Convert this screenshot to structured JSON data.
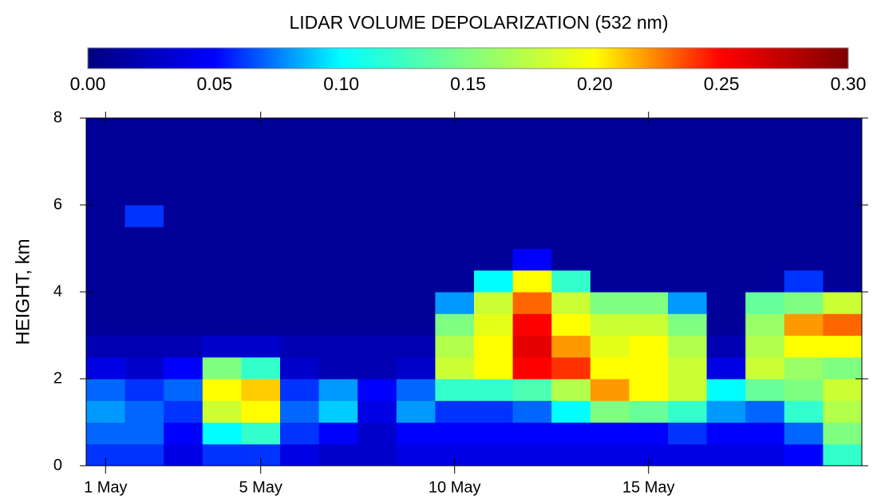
{
  "chart_data": {
    "type": "heatmap",
    "title": "LIDAR VOLUME DEPOLARIZATION (532 nm)",
    "ylabel": "HEIGHT, km",
    "x": [
      1,
      2,
      3,
      4,
      5,
      6,
      7,
      8,
      9,
      10,
      11,
      12,
      13,
      14,
      15,
      16,
      17,
      18,
      19,
      20
    ],
    "y": [
      0.25,
      0.75,
      1.25,
      1.75,
      2.25,
      2.75,
      3.25,
      3.75,
      4.25,
      4.75,
      5.25,
      5.75,
      6.25,
      6.75,
      7.25,
      7.75
    ],
    "z": [
      [
        0.06,
        0.06,
        0.04,
        0.06,
        0.06,
        0.04,
        0.03,
        0.03,
        0.04,
        0.04,
        0.04,
        0.04,
        0.04,
        0.04,
        0.04,
        0.04,
        0.04,
        0.04,
        0.05,
        0.12
      ],
      [
        0.07,
        0.07,
        0.05,
        0.1,
        0.12,
        0.06,
        0.05,
        0.03,
        0.05,
        0.05,
        0.05,
        0.05,
        0.05,
        0.05,
        0.05,
        0.06,
        0.05,
        0.05,
        0.07,
        0.15
      ],
      [
        0.08,
        0.07,
        0.06,
        0.18,
        0.2,
        0.07,
        0.09,
        0.04,
        0.08,
        0.06,
        0.06,
        0.07,
        0.1,
        0.15,
        0.14,
        0.12,
        0.08,
        0.07,
        0.12,
        0.17
      ],
      [
        0.07,
        0.06,
        0.07,
        0.2,
        0.21,
        0.06,
        0.08,
        0.05,
        0.07,
        0.12,
        0.12,
        0.13,
        0.17,
        0.22,
        0.2,
        0.18,
        0.1,
        0.14,
        0.15,
        0.18
      ],
      [
        0.04,
        0.03,
        0.05,
        0.15,
        0.12,
        0.03,
        0.02,
        0.02,
        0.03,
        0.18,
        0.2,
        0.25,
        0.24,
        0.2,
        0.2,
        0.18,
        0.04,
        0.18,
        0.16,
        0.15
      ],
      [
        0.02,
        0.02,
        0.02,
        0.03,
        0.03,
        0.02,
        0.02,
        0.02,
        0.02,
        0.17,
        0.2,
        0.26,
        0.22,
        0.19,
        0.2,
        0.17,
        0.02,
        0.17,
        0.2,
        0.2
      ],
      [
        0.01,
        0.01,
        0.01,
        0.01,
        0.01,
        0.01,
        0.01,
        0.01,
        0.01,
        0.15,
        0.19,
        0.25,
        0.2,
        0.18,
        0.18,
        0.15,
        0.01,
        0.16,
        0.22,
        0.23
      ],
      [
        0.01,
        0.01,
        0.01,
        0.01,
        0.01,
        0.01,
        0.01,
        0.01,
        0.01,
        0.08,
        0.18,
        0.23,
        0.18,
        0.15,
        0.15,
        0.08,
        0.01,
        0.14,
        0.15,
        0.18
      ],
      [
        0.01,
        0.01,
        0.01,
        0.01,
        0.01,
        0.01,
        0.01,
        0.01,
        0.01,
        0.01,
        0.1,
        0.2,
        0.12,
        0.01,
        0.01,
        0.01,
        0.01,
        0.01,
        0.06,
        0.01
      ],
      [
        0.01,
        0.01,
        0.01,
        0.01,
        0.01,
        0.01,
        0.01,
        0.01,
        0.01,
        0.01,
        0.01,
        0.05,
        0.01,
        0.01,
        0.01,
        0.01,
        0.01,
        0.01,
        0.01,
        0.01
      ],
      [
        0.01,
        0.01,
        0.01,
        0.01,
        0.01,
        0.01,
        0.01,
        0.01,
        0.01,
        0.01,
        0.01,
        0.01,
        0.01,
        0.01,
        0.01,
        0.01,
        0.01,
        0.01,
        0.01,
        0.01
      ],
      [
        0.01,
        0.06,
        0.01,
        0.01,
        0.01,
        0.01,
        0.01,
        0.01,
        0.01,
        0.01,
        0.01,
        0.01,
        0.01,
        0.01,
        0.01,
        0.01,
        0.01,
        0.01,
        0.01,
        0.01
      ],
      [
        0.01,
        0.01,
        0.01,
        0.01,
        0.01,
        0.01,
        0.01,
        0.01,
        0.01,
        0.01,
        0.01,
        0.01,
        0.01,
        0.01,
        0.01,
        0.01,
        0.01,
        0.01,
        0.01,
        0.01
      ],
      [
        0.01,
        0.01,
        0.01,
        0.01,
        0.01,
        0.01,
        0.01,
        0.01,
        0.01,
        0.01,
        0.01,
        0.01,
        0.01,
        0.01,
        0.01,
        0.01,
        0.01,
        0.01,
        0.01,
        0.01
      ],
      [
        0.01,
        0.01,
        0.01,
        0.01,
        0.01,
        0.01,
        0.01,
        0.01,
        0.01,
        0.01,
        0.01,
        0.01,
        0.01,
        0.01,
        0.01,
        0.01,
        0.01,
        0.01,
        0.01,
        0.01
      ],
      [
        0.01,
        0.01,
        0.01,
        0.01,
        0.01,
        0.01,
        0.01,
        0.01,
        0.01,
        0.01,
        0.01,
        0.01,
        0.01,
        0.01,
        0.01,
        0.01,
        0.01,
        0.01,
        0.01,
        0.01
      ]
    ],
    "xlim": [
      0.5,
      20.5
    ],
    "xticks": [
      {
        "value": 1,
        "label": "1 May"
      },
      {
        "value": 5,
        "label": "5 May"
      },
      {
        "value": 10,
        "label": "10 May"
      },
      {
        "value": 15,
        "label": "15 May"
      }
    ],
    "ylim": [
      0,
      8
    ],
    "yticks": [
      0,
      2,
      4,
      6,
      8
    ],
    "clim": [
      0,
      0.3
    ],
    "cticks": [
      {
        "value": 0,
        "label": "0.00"
      },
      {
        "value": 0.05,
        "label": "0.05"
      },
      {
        "value": 0.1,
        "label": "0.10"
      },
      {
        "value": 0.15,
        "label": "0.15"
      },
      {
        "value": 0.2,
        "label": "0.20"
      },
      {
        "value": 0.25,
        "label": "0.25"
      },
      {
        "value": 0.3,
        "label": "0.30"
      }
    ],
    "colormap": [
      "#00007f",
      "#0000ff",
      "#00ffff",
      "#7fff7f",
      "#ffff00",
      "#ff0000",
      "#7f0000"
    ]
  }
}
